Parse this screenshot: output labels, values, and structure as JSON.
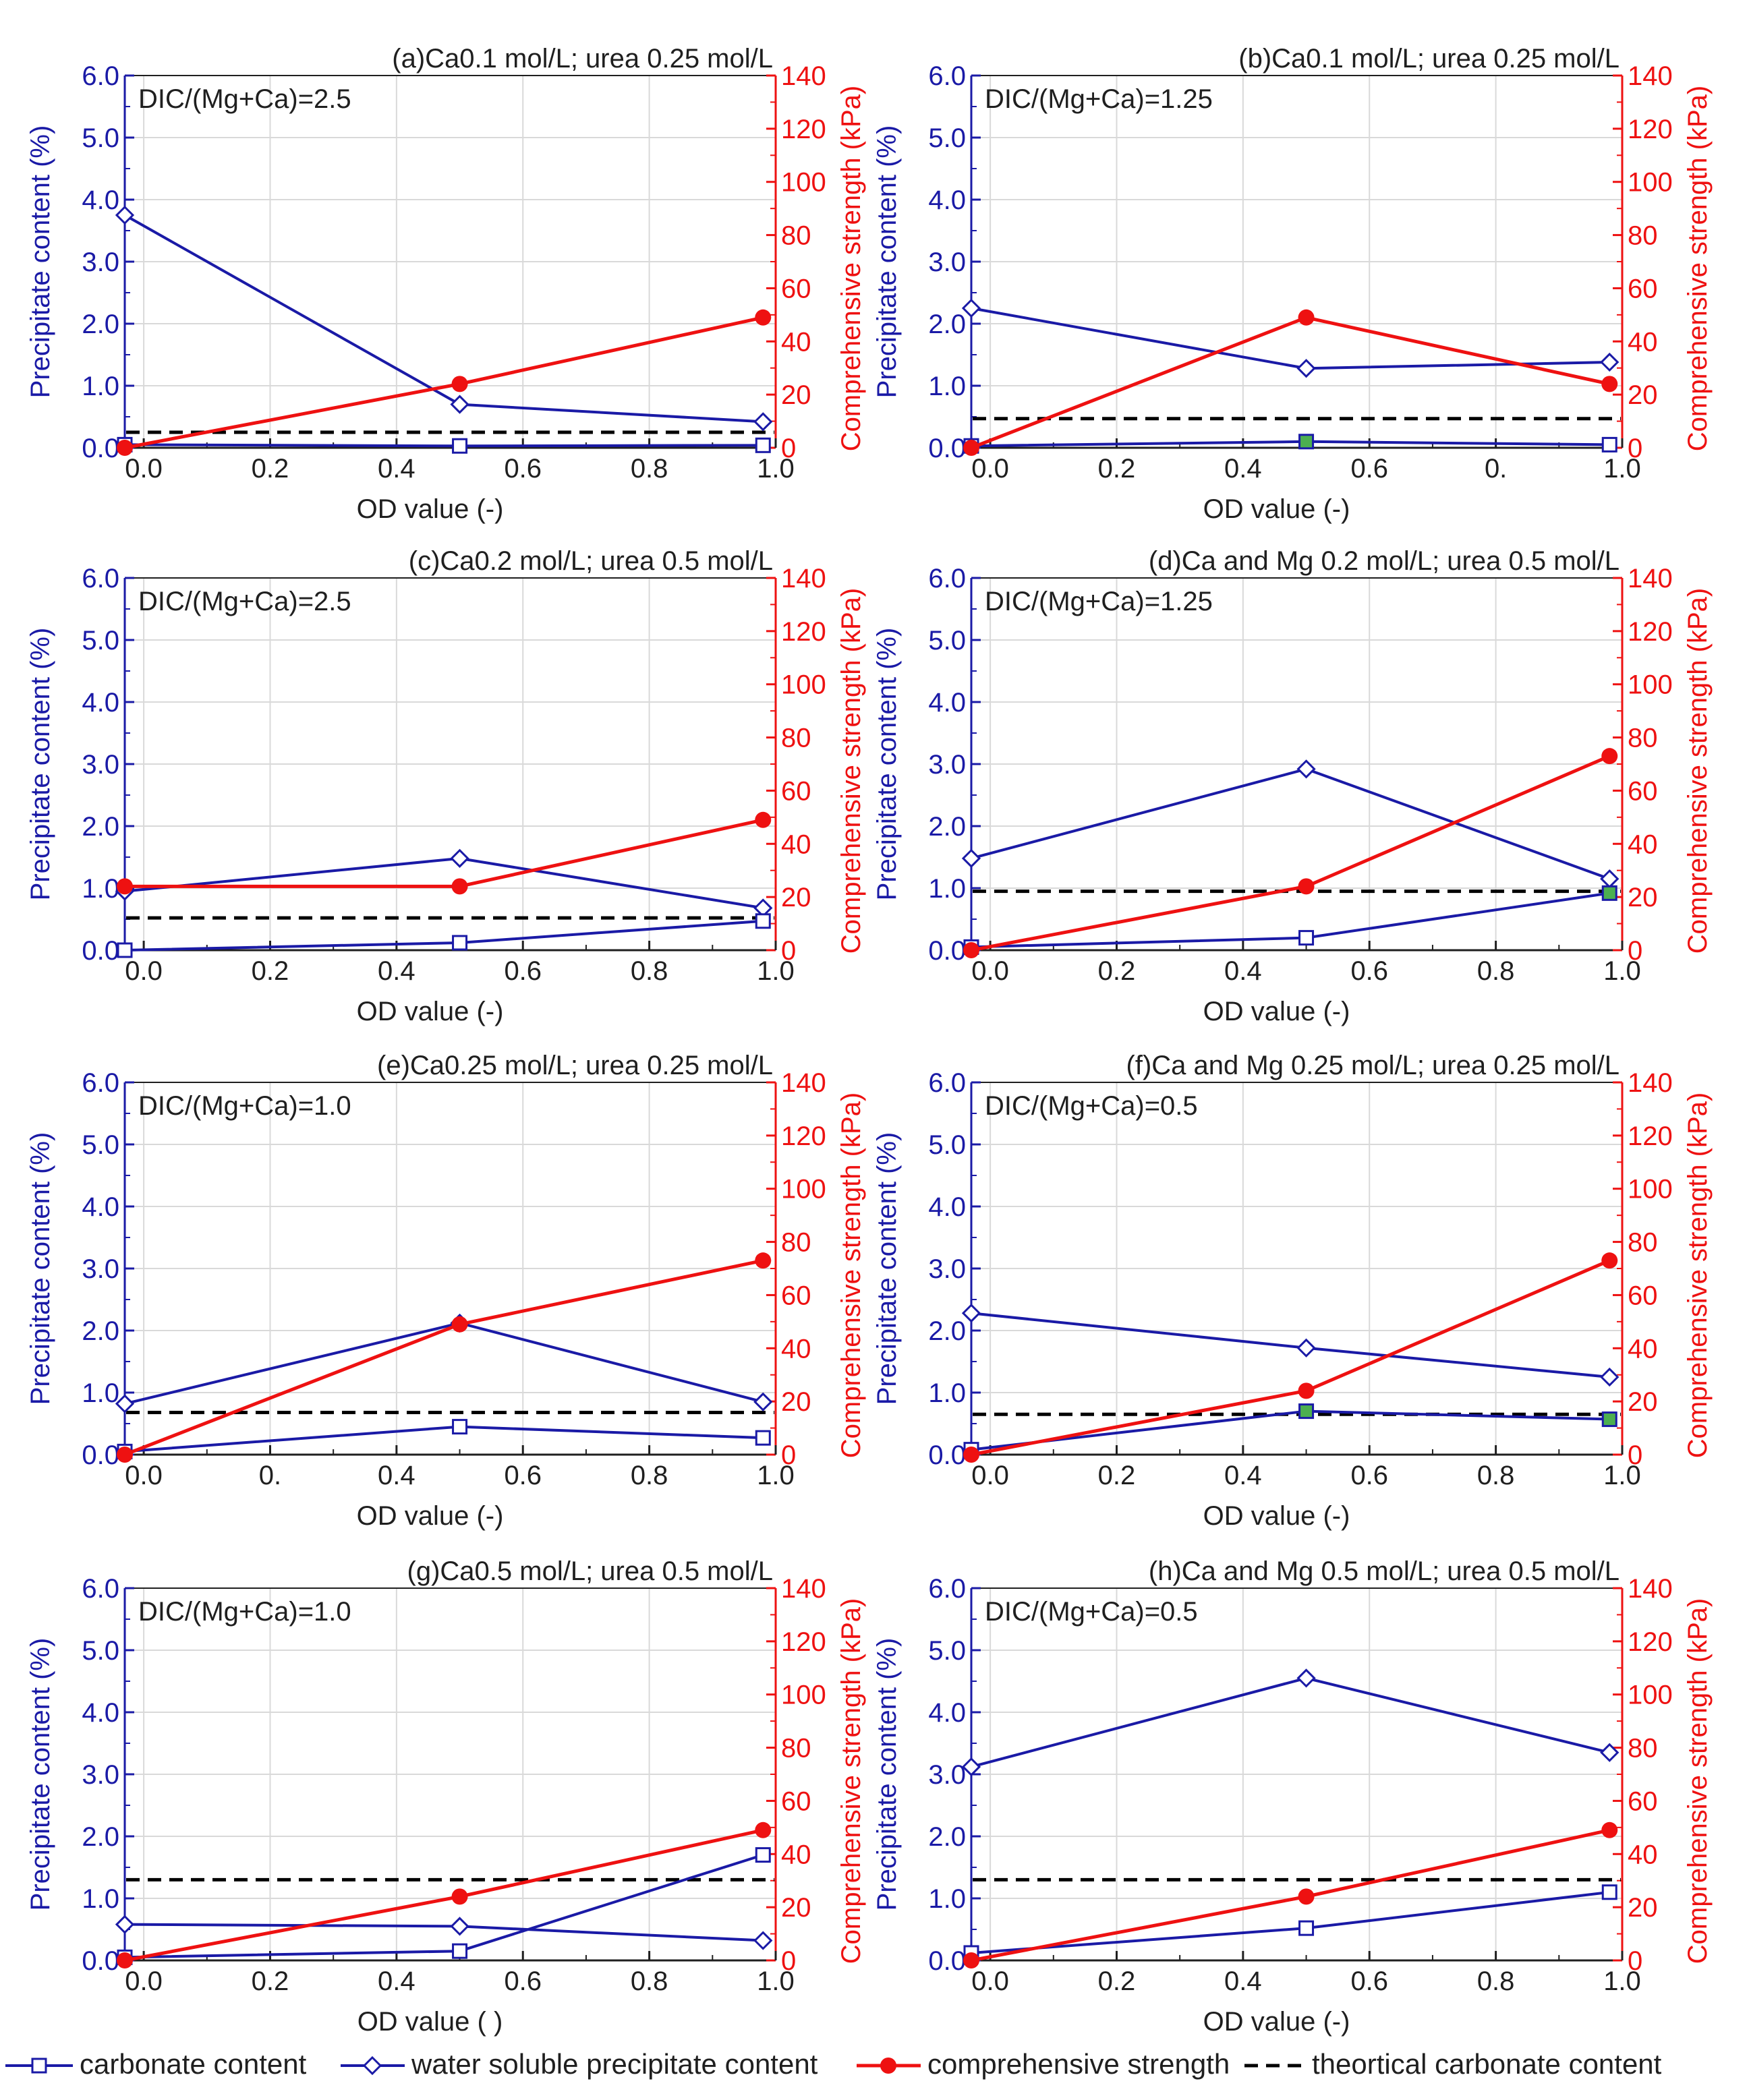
{
  "colors": {
    "left_axis": "#1a1aa6",
    "right_axis": "#ee1111",
    "theoretical": "#000000",
    "marker_fill_carbonate": "#ffffff",
    "marker_fill_carbonate_alt": "#4caf50",
    "grid": "#d9d9d9"
  },
  "legend": {
    "carbonate": "carbonate content",
    "water": "water soluble precipitate content",
    "strength": "comprehensive strength",
    "theoretical": "theortical carbonate content"
  },
  "chart_data": [
    {
      "id": "a",
      "type": "line",
      "title": "(a)Ca0.1 mol/L; urea 0.25 mol/L",
      "annotation": "DIC/(Mg+Ca)=2.5",
      "xlabel": "OD value (-)",
      "ylabel": "Precipitate content (%)",
      "y2label": "Comprehensive strength (kPa)",
      "xlim": [
        -0.03,
        1.0
      ],
      "ylim": [
        0,
        6
      ],
      "y2lim": [
        0,
        140
      ],
      "x_ticks": [
        "0.0",
        "0.2",
        "0.4",
        "0.6",
        "0.8",
        "1.0"
      ],
      "y_ticks": [
        "0.0",
        "1.0",
        "2.0",
        "3.0",
        "4.0",
        "5.0",
        "6.0"
      ],
      "y2_ticks": [
        "0",
        "20",
        "40",
        "60",
        "80",
        "100",
        "120",
        "140"
      ],
      "x": [
        -0.03,
        0.5,
        0.98
      ],
      "carbonate": [
        0.05,
        0.03,
        0.04
      ],
      "carbonate_alt_marker": [
        false,
        false,
        false
      ],
      "water_soluble": [
        3.75,
        0.7,
        0.42
      ],
      "strength": [
        0,
        24,
        49
      ],
      "theoretical": 0.25
    },
    {
      "id": "b",
      "type": "line",
      "title": "(b)Ca0.1 mol/L; urea 0.25 mol/L",
      "annotation": "DIC/(Mg+Ca)=1.25",
      "xlabel": "OD value (-)",
      "ylabel": "Precipitate content (%)",
      "y2label": "Comprehensive strength (kPa)",
      "xlim": [
        -0.03,
        1.0
      ],
      "ylim": [
        0,
        6
      ],
      "y2lim": [
        0,
        140
      ],
      "x_ticks": [
        "0.0",
        "0.2",
        "0.4",
        "0.6",
        "0.",
        "1.0"
      ],
      "y_ticks": [
        "0.0",
        "1.0",
        "2.0",
        "3.0",
        "4.0",
        "5.0",
        "6.0"
      ],
      "y2_ticks": [
        "0",
        "20",
        "40",
        "60",
        "80",
        "100",
        "120",
        "140"
      ],
      "x": [
        -0.03,
        0.5,
        0.98
      ],
      "carbonate": [
        0.03,
        0.1,
        0.05
      ],
      "carbonate_alt_marker": [
        false,
        true,
        false
      ],
      "water_soluble": [
        2.25,
        1.28,
        1.38
      ],
      "strength": [
        0,
        49,
        24
      ],
      "theoretical": 0.47
    },
    {
      "id": "c",
      "type": "line",
      "title": "(c)Ca0.2 mol/L; urea 0.5 mol/L",
      "annotation": "DIC/(Mg+Ca)=2.5",
      "xlabel": "OD value (-)",
      "ylabel": "Precipitate content (%)",
      "y2label": "Comprehensive strength (kPa)",
      "xlim": [
        -0.03,
        1.0
      ],
      "ylim": [
        0,
        6
      ],
      "y2lim": [
        0,
        140
      ],
      "x_ticks": [
        "0.0",
        "0.2",
        "0.4",
        "0.6",
        "0.8",
        "1.0"
      ],
      "y_ticks": [
        "0.0",
        "1.0",
        "2.0",
        "3.0",
        "4.0",
        "5.0",
        "6.0"
      ],
      "y2_ticks": [
        "0",
        "20",
        "40",
        "60",
        "80",
        "100",
        "120",
        "140"
      ],
      "x": [
        -0.03,
        0.5,
        0.98
      ],
      "carbonate": [
        0.0,
        0.12,
        0.47
      ],
      "carbonate_alt_marker": [
        false,
        false,
        false
      ],
      "water_soluble": [
        0.95,
        1.48,
        0.68
      ],
      "strength": [
        24,
        24,
        49
      ],
      "theoretical": 0.52
    },
    {
      "id": "d",
      "type": "line",
      "title": "(d)Ca and Mg 0.2 mol/L; urea 0.5 mol/L",
      "annotation": "DIC/(Mg+Ca)=1.25",
      "xlabel": "OD value (-)",
      "ylabel": "Precipitate content (%)",
      "y2label": "Comprehensive strength (kPa)",
      "xlim": [
        -0.03,
        1.0
      ],
      "ylim": [
        0,
        6
      ],
      "y2lim": [
        0,
        140
      ],
      "x_ticks": [
        "0.0",
        "0.2",
        "0.4",
        "0.6",
        "0.8",
        "1.0"
      ],
      "y_ticks": [
        "0.0",
        "1.0",
        "2.0",
        "3.0",
        "4.0",
        "5.0",
        "6.0"
      ],
      "y2_ticks": [
        "0",
        "20",
        "40",
        "60",
        "80",
        "100",
        "120",
        "140"
      ],
      "x": [
        -0.03,
        0.5,
        0.98
      ],
      "carbonate": [
        0.05,
        0.2,
        0.92
      ],
      "carbonate_alt_marker": [
        false,
        false,
        true
      ],
      "water_soluble": [
        1.48,
        2.92,
        1.15
      ],
      "strength": [
        0,
        24,
        73
      ],
      "theoretical": 0.95
    },
    {
      "id": "e",
      "type": "line",
      "title": "(e)Ca0.25 mol/L; urea 0.25 mol/L",
      "annotation": "DIC/(Mg+Ca)=1.0",
      "xlabel": "OD value (-)",
      "ylabel": "Precipitate content (%)",
      "y2label": "Comprehensive strength (kPa)",
      "xlim": [
        -0.03,
        1.0
      ],
      "ylim": [
        0,
        6
      ],
      "y2lim": [
        0,
        140
      ],
      "x_ticks": [
        "0.0",
        "0.",
        "0.4",
        "0.6",
        "0.8",
        "1.0"
      ],
      "y_ticks": [
        "0.0",
        "1.0",
        "2.0",
        "3.0",
        "4.0",
        "5.0",
        "6.0"
      ],
      "y2_ticks": [
        "0",
        "20",
        "40",
        "60",
        "80",
        "100",
        "120",
        "140"
      ],
      "x": [
        -0.03,
        0.5,
        0.98
      ],
      "carbonate": [
        0.05,
        0.45,
        0.27
      ],
      "carbonate_alt_marker": [
        false,
        false,
        false
      ],
      "water_soluble": [
        0.82,
        2.12,
        0.85
      ],
      "strength": [
        0,
        49,
        73
      ],
      "theoretical": 0.68
    },
    {
      "id": "f",
      "type": "line",
      "title": "(f)Ca and Mg 0.25 mol/L; urea 0.25 mol/L",
      "annotation": "DIC/(Mg+Ca)=0.5",
      "xlabel": "OD value (-)",
      "ylabel": "Precipitate content (%)",
      "y2label": "Comprehensive strength (kPa)",
      "xlim": [
        -0.03,
        1.0
      ],
      "ylim": [
        0,
        6
      ],
      "y2lim": [
        0,
        140
      ],
      "x_ticks": [
        "0.0",
        "0.2",
        "0.4",
        "0.6",
        "0.8",
        "1.0"
      ],
      "y_ticks": [
        "0.0",
        "1.0",
        "2.0",
        "3.0",
        "4.0",
        "5.0",
        "6.0"
      ],
      "y2_ticks": [
        "0",
        "20",
        "40",
        "60",
        "80",
        "100",
        "120",
        "140"
      ],
      "x": [
        -0.03,
        0.5,
        0.98
      ],
      "carbonate": [
        0.08,
        0.7,
        0.57
      ],
      "carbonate_alt_marker": [
        false,
        true,
        true
      ],
      "water_soluble": [
        2.28,
        1.72,
        1.25
      ],
      "strength": [
        0,
        24,
        73
      ],
      "theoretical": 0.65
    },
    {
      "id": "g",
      "type": "line",
      "title": "(g)Ca0.5 mol/L; urea 0.5 mol/L",
      "annotation": "DIC/(Mg+Ca)=1.0",
      "xlabel": "OD value ( )",
      "ylabel": "Precipitate content (%)",
      "y2label": "Comprehensive strength (kPa)",
      "xlim": [
        -0.03,
        1.0
      ],
      "ylim": [
        0,
        6
      ],
      "y2lim": [
        0,
        140
      ],
      "x_ticks": [
        "0.0",
        "0.2",
        "0.4",
        "0.6",
        "0.8",
        "1.0"
      ],
      "y_ticks": [
        "0.0",
        "1.0",
        "2.0",
        "3.0",
        "4.0",
        "5.0",
        "6.0"
      ],
      "y2_ticks": [
        "0",
        "20",
        "40",
        "60",
        "80",
        "100",
        "120",
        "140"
      ],
      "x": [
        -0.03,
        0.5,
        0.98
      ],
      "carbonate": [
        0.05,
        0.15,
        1.7
      ],
      "carbonate_alt_marker": [
        false,
        false,
        false
      ],
      "water_soluble": [
        0.58,
        0.55,
        0.32
      ],
      "strength": [
        0,
        24,
        49
      ],
      "theoretical": 1.3
    },
    {
      "id": "h",
      "type": "line",
      "title": "(h)Ca and Mg 0.5 mol/L; urea 0.5 mol/L",
      "annotation": "DIC/(Mg+Ca)=0.5",
      "xlabel": "OD value (-)",
      "ylabel": "Precipitate content (%)",
      "y2label": "Comprehensive strength (kPa)",
      "xlim": [
        -0.03,
        1.0
      ],
      "ylim": [
        0,
        6
      ],
      "y2lim": [
        0,
        140
      ],
      "x_ticks": [
        "0.0",
        "0.2",
        "0.4",
        "0.6",
        "0.8",
        "1.0"
      ],
      "y_ticks": [
        "0.0",
        "1.0",
        "2.0",
        "3.0",
        "4.0",
        "5.0",
        "6.0"
      ],
      "y2_ticks": [
        "0",
        "20",
        "40",
        "60",
        "80",
        "100",
        "120",
        "140"
      ],
      "x": [
        -0.03,
        0.5,
        0.98
      ],
      "carbonate": [
        0.12,
        0.52,
        1.1
      ],
      "carbonate_alt_marker": [
        false,
        false,
        false
      ],
      "water_soluble": [
        3.12,
        4.55,
        3.35
      ],
      "strength": [
        0,
        24,
        49
      ],
      "theoretical": 1.3
    }
  ]
}
